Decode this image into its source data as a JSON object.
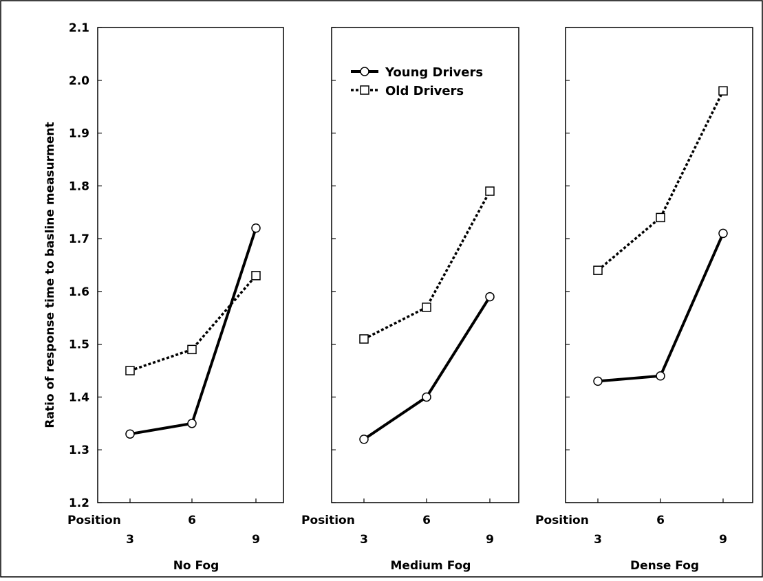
{
  "chart_data": {
    "type": "line",
    "ylabel": "Ratio of response time to basline measurment",
    "ylim": [
      1.2,
      2.1
    ],
    "yticks": [
      "1.2",
      "1.3",
      "1.4",
      "1.5",
      "1.6",
      "1.7",
      "1.8",
      "1.9",
      "2.0",
      "2.1"
    ],
    "x_prefix_label": "Position",
    "x": [
      3,
      6,
      9
    ],
    "x_tick_labels": [
      "3",
      "6",
      "9"
    ],
    "grid": false,
    "legend": {
      "placement": "top-left of middle panel",
      "entries": [
        {
          "label": "Young Drivers",
          "marker": "circle",
          "line": "solid"
        },
        {
          "label": "Old Drivers",
          "marker": "square",
          "line": "dashed"
        }
      ]
    },
    "panels": [
      {
        "name": "No Fog",
        "series": [
          {
            "name": "Young Drivers",
            "values": [
              1.33,
              1.35,
              1.72
            ]
          },
          {
            "name": "Old Drivers",
            "values": [
              1.45,
              1.49,
              1.63
            ]
          }
        ]
      },
      {
        "name": "Medium Fog",
        "series": [
          {
            "name": "Young Drivers",
            "values": [
              1.32,
              1.4,
              1.59
            ]
          },
          {
            "name": "Old Drivers",
            "values": [
              1.51,
              1.57,
              1.79
            ]
          }
        ]
      },
      {
        "name": "Dense Fog",
        "series": [
          {
            "name": "Young Drivers",
            "values": [
              1.43,
              1.44,
              1.71
            ]
          },
          {
            "name": "Old Drivers",
            "values": [
              1.64,
              1.74,
              1.98
            ]
          }
        ]
      }
    ]
  }
}
